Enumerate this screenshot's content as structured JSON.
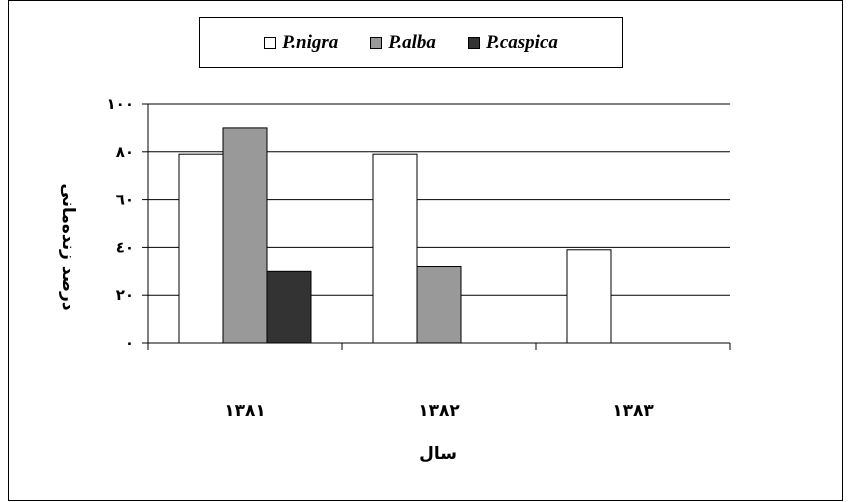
{
  "chart_data": {
    "type": "bar",
    "categories": [
      "۱۳۸۱",
      "۱۳۸۲",
      "۱۳۸۳"
    ],
    "series": [
      {
        "name": "P.nigra",
        "values": [
          79,
          79,
          39
        ],
        "color": "#ffffff"
      },
      {
        "name": "P.alba",
        "values": [
          90,
          32,
          0
        ],
        "color": "#999999"
      },
      {
        "name": "P.caspica",
        "values": [
          30,
          0,
          0
        ],
        "color": "#333333"
      }
    ],
    "yticks": [
      {
        "value": 0,
        "label": "۰"
      },
      {
        "value": 20,
        "label": "۲۰"
      },
      {
        "value": 40,
        "label": "٤۰"
      },
      {
        "value": 60,
        "label": "٦۰"
      },
      {
        "value": 80,
        "label": "۸۰"
      },
      {
        "value": 100,
        "label": "۱۰۰"
      }
    ],
    "ylim": [
      0,
      100
    ],
    "xlabel": "سال",
    "ylabel": "درصد زنده‌مانی",
    "grid": true,
    "legend_position": "top"
  }
}
